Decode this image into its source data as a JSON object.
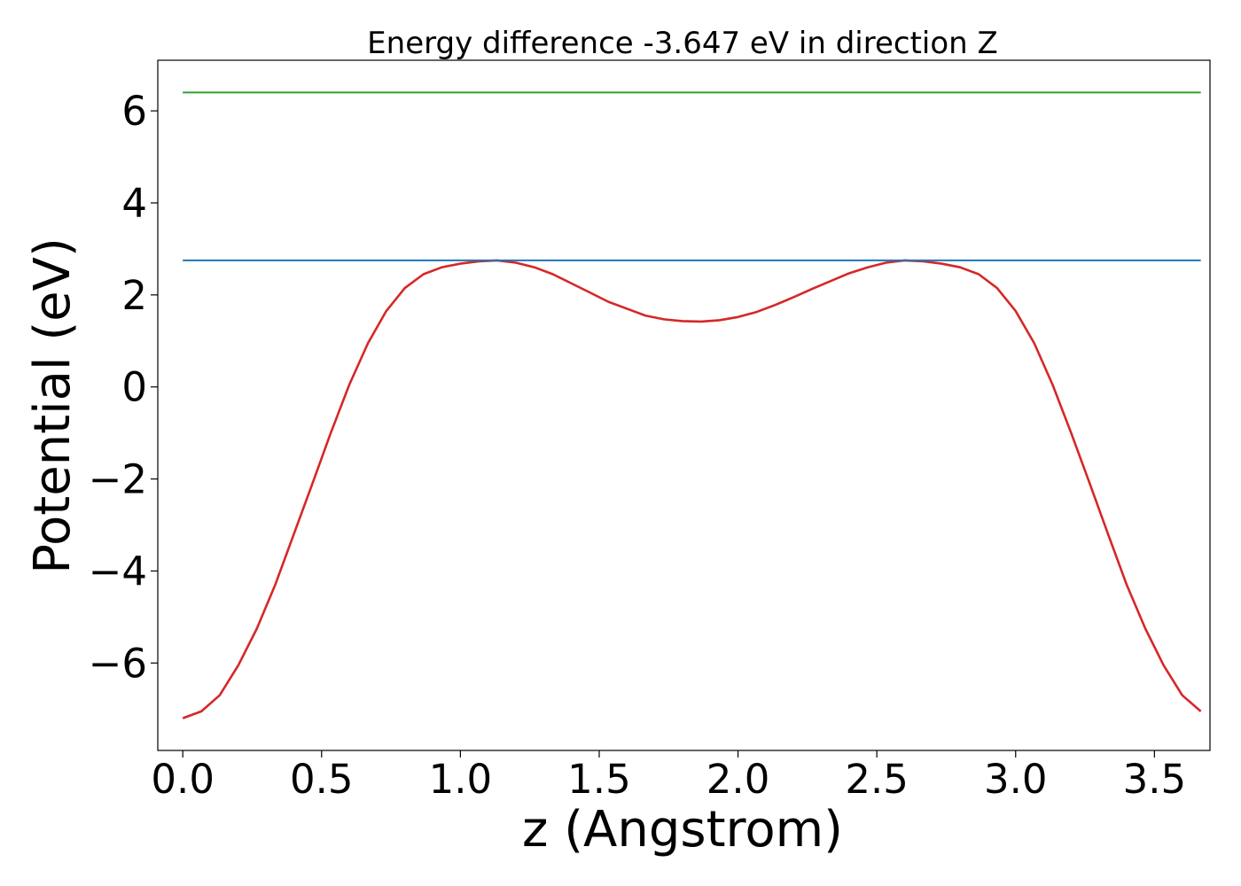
{
  "chart_data": {
    "type": "line",
    "title": "Energy difference -3.647 eV in direction Z",
    "xlabel": "z (Angstrom)",
    "ylabel": "Potential (eV)",
    "xlim": [
      -0.09,
      3.7
    ],
    "ylim": [
      -7.9,
      7.1
    ],
    "x_ticks": [
      0.0,
      0.5,
      1.0,
      1.5,
      2.0,
      2.5,
      3.0,
      3.5
    ],
    "x_tick_labels": [
      "0.0",
      "0.5",
      "1.0",
      "1.5",
      "2.0",
      "2.5",
      "3.0",
      "3.5"
    ],
    "y_ticks": [
      -6,
      -4,
      -2,
      0,
      2,
      4,
      6
    ],
    "y_tick_labels": [
      "−6",
      "−4",
      "−2",
      "0",
      "2",
      "4",
      "6"
    ],
    "grid": false,
    "series": [
      {
        "color": "#d62728",
        "style": "solid",
        "x": [
          0.0,
          0.067,
          0.133,
          0.2,
          0.267,
          0.333,
          0.4,
          0.467,
          0.533,
          0.6,
          0.667,
          0.733,
          0.8,
          0.867,
          0.933,
          1.0,
          1.067,
          1.133,
          1.2,
          1.267,
          1.333,
          1.4,
          1.467,
          1.533,
          1.6,
          1.667,
          1.733,
          1.8,
          1.867,
          1.933,
          2.0,
          2.067,
          2.133,
          2.2,
          2.267,
          2.333,
          2.4,
          2.467,
          2.533,
          2.6,
          2.667,
          2.733,
          2.8,
          2.867,
          2.933,
          3.0,
          3.067,
          3.133,
          3.2,
          3.267,
          3.333,
          3.4,
          3.467,
          3.533,
          3.6,
          3.667
        ],
        "y": [
          -7.2,
          -7.05,
          -6.7,
          -6.05,
          -5.25,
          -4.3,
          -3.2,
          -2.1,
          -1.0,
          0.05,
          0.95,
          1.65,
          2.15,
          2.45,
          2.6,
          2.68,
          2.73,
          2.75,
          2.7,
          2.6,
          2.45,
          2.25,
          2.05,
          1.85,
          1.7,
          1.55,
          1.47,
          1.43,
          1.42,
          1.45,
          1.52,
          1.63,
          1.78,
          1.95,
          2.13,
          2.3,
          2.47,
          2.6,
          2.7,
          2.75,
          2.73,
          2.68,
          2.6,
          2.45,
          2.15,
          1.65,
          0.95,
          0.05,
          -1.0,
          -2.1,
          -3.2,
          -4.3,
          -5.25,
          -6.05,
          -6.7,
          -7.05
        ]
      },
      {
        "color": "#1f77b4",
        "style": "solid",
        "x": [
          0.0,
          3.667
        ],
        "y": [
          2.75,
          2.75
        ]
      },
      {
        "color": "#2ca02c",
        "style": "solid",
        "x": [
          0.0,
          3.667
        ],
        "y": [
          6.4,
          6.4
        ]
      }
    ]
  }
}
